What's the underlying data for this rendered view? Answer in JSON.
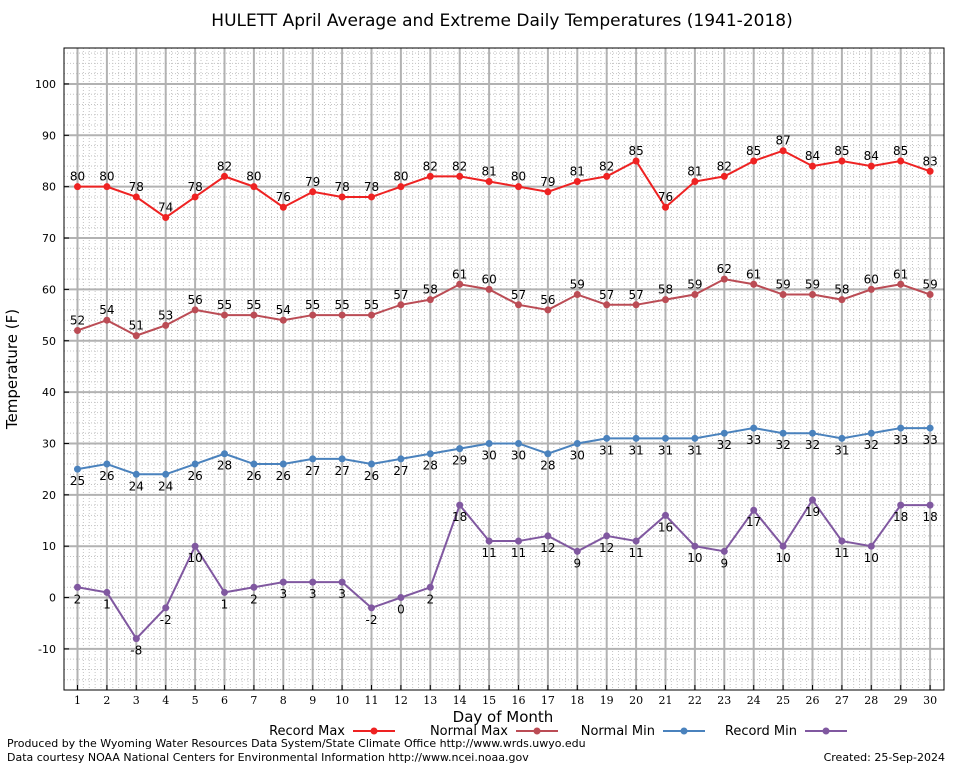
{
  "chart_data": {
    "type": "line",
    "title": "HULETT April Average and Extreme Daily Temperatures (1941-2018)",
    "xlabel": "Day of Month",
    "ylabel": "Temperature (F)",
    "ylim": [
      -18,
      107
    ],
    "yticks": [
      -10,
      0,
      10,
      20,
      30,
      40,
      50,
      60,
      70,
      80,
      90,
      100
    ],
    "x": [
      1,
      2,
      3,
      4,
      5,
      6,
      7,
      8,
      9,
      10,
      11,
      12,
      13,
      14,
      15,
      16,
      17,
      18,
      19,
      20,
      21,
      22,
      23,
      24,
      25,
      26,
      27,
      28,
      29,
      30
    ],
    "grid": true,
    "legend_position": "bottom",
    "series": [
      {
        "name": "Record Max",
        "color": "#ee2222",
        "label_position": "above",
        "values": [
          80,
          80,
          78,
          74,
          78,
          82,
          80,
          76,
          79,
          78,
          78,
          80,
          82,
          82,
          81,
          80,
          79,
          81,
          82,
          85,
          76,
          81,
          82,
          85,
          87,
          84,
          85,
          84,
          85,
          83
        ]
      },
      {
        "name": "Normal Max",
        "color": "#bb4c55",
        "label_position": "above",
        "values": [
          52,
          54,
          51,
          53,
          56,
          55,
          55,
          54,
          55,
          55,
          55,
          57,
          58,
          61,
          60,
          57,
          56,
          59,
          57,
          57,
          58,
          59,
          62,
          61,
          59,
          59,
          58,
          60,
          61,
          59
        ]
      },
      {
        "name": "Normal Min",
        "color": "#4a82bd",
        "label_position": "below",
        "values": [
          25,
          26,
          24,
          24,
          26,
          28,
          26,
          26,
          27,
          27,
          26,
          27,
          28,
          29,
          30,
          30,
          28,
          30,
          31,
          31,
          31,
          31,
          32,
          33,
          32,
          32,
          31,
          32,
          33,
          33
        ]
      },
      {
        "name": "Record Min",
        "color": "#8058a0",
        "label_position": "below",
        "values": [
          2,
          1,
          -8,
          -2,
          10,
          1,
          2,
          3,
          3,
          3,
          -2,
          0,
          2,
          18,
          11,
          11,
          12,
          9,
          12,
          11,
          16,
          10,
          9,
          17,
          10,
          19,
          11,
          10,
          18,
          18
        ]
      }
    ]
  },
  "footer": {
    "line1": "Produced by the Wyoming Water Resources Data System/State Climate Office http://www.wrds.uwyo.edu",
    "line2": "Data courtesy NOAA National Centers for Environmental Information http://www.ncei.noaa.gov",
    "created": "Created:  25-Sep-2024"
  }
}
